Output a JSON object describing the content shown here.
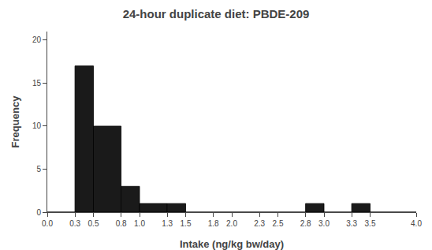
{
  "chart_data": {
    "type": "histogram",
    "title": "24-hour duplicate diet: PBDE-209",
    "xlabel": "Intake (ng/kg bw/day)",
    "ylabel": "Frequency",
    "bins": [
      0.0,
      0.3,
      0.5,
      0.8,
      1.0,
      1.3,
      1.5,
      1.8,
      2.0,
      2.3,
      2.5,
      2.8,
      3.0,
      3.3,
      3.5,
      4.0
    ],
    "values": [
      0,
      17,
      10,
      3,
      1,
      1,
      0,
      0,
      0,
      0,
      0,
      1,
      0,
      1,
      0
    ],
    "color": "#1a1a1a",
    "xlim": [
      0.0,
      4.0
    ],
    "xticks": [
      {
        "value": 0.0,
        "label": "0.0"
      },
      0.3,
      0.5,
      0.8,
      {
        "value": 1.0,
        "label": "1.0"
      },
      1.3,
      1.5,
      1.8,
      {
        "value": 2.0,
        "label": "2.0"
      },
      2.3,
      2.5,
      2.8,
      {
        "value": 3.0,
        "label": "3.0"
      },
      3.3,
      3.5,
      {
        "value": 4.0,
        "label": "4.0"
      }
    ],
    "ylim": [
      0,
      21
    ],
    "yticks": [
      0,
      5,
      10,
      15,
      20
    ],
    "grid": false
  }
}
